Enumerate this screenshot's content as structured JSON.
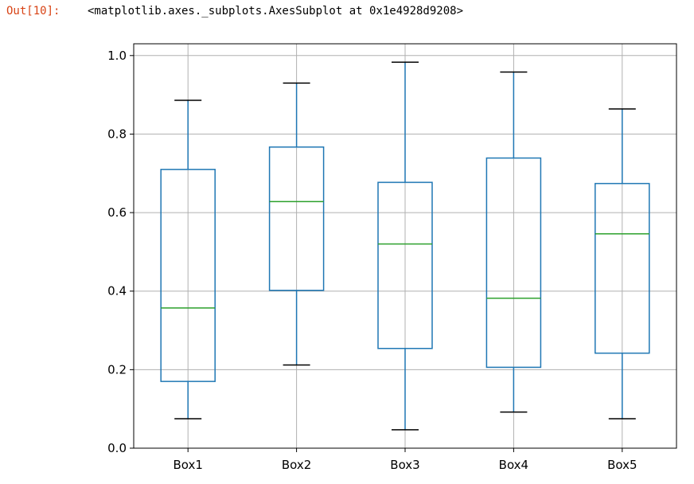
{
  "cell": {
    "prompt": "Out[10]:",
    "output_text": "<matplotlib.axes._subplots.AxesSubplot at 0x1e4928d9208>"
  },
  "colors": {
    "box": "#1f77b4",
    "median": "#2ca02c",
    "whisker": "#1f77b4",
    "cap": "#000000",
    "grid": "#b0b0b0",
    "prompt": "#d84315"
  },
  "chart_data": {
    "type": "box",
    "categories": [
      "Box1",
      "Box2",
      "Box3",
      "Box4",
      "Box5"
    ],
    "boxes": [
      {
        "whisker_low": 0.075,
        "q1": 0.17,
        "median": 0.357,
        "q3": 0.71,
        "whisker_high": 0.886
      },
      {
        "whisker_low": 0.212,
        "q1": 0.402,
        "median": 0.628,
        "q3": 0.767,
        "whisker_high": 0.93
      },
      {
        "whisker_low": 0.047,
        "q1": 0.254,
        "median": 0.52,
        "q3": 0.677,
        "whisker_high": 0.983
      },
      {
        "whisker_low": 0.092,
        "q1": 0.206,
        "median": 0.382,
        "q3": 0.739,
        "whisker_high": 0.958
      },
      {
        "whisker_low": 0.075,
        "q1": 0.242,
        "median": 0.546,
        "q3": 0.674,
        "whisker_high": 0.864
      }
    ],
    "yticks": [
      "0.0",
      "0.2",
      "0.4",
      "0.6",
      "0.8",
      "1.0"
    ],
    "ylim": [
      0,
      1.03
    ],
    "grid": true,
    "title": "",
    "xlabel": "",
    "ylabel": ""
  }
}
